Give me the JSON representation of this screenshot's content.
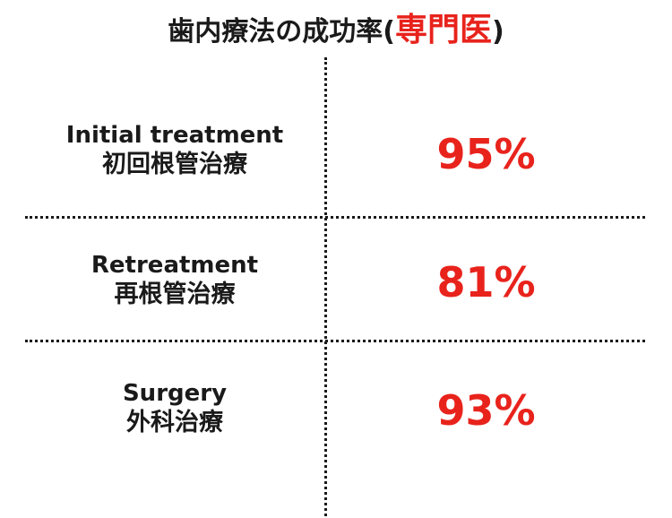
{
  "title": {
    "main": "歯内療法の成功率(",
    "accent": "専門医",
    "close": ")"
  },
  "rows": [
    {
      "label_en": "Initial treatment",
      "label_ja": "初回根管治療",
      "rate": "95%"
    },
    {
      "label_en": "Retreatment",
      "label_ja": "再根管治療",
      "rate": "81%"
    },
    {
      "label_en": "Surgery",
      "label_ja": "外科治療",
      "rate": "93%"
    }
  ],
  "colors": {
    "accent": "#e8231c",
    "text": "#1a1a1a",
    "background": "#ffffff"
  }
}
